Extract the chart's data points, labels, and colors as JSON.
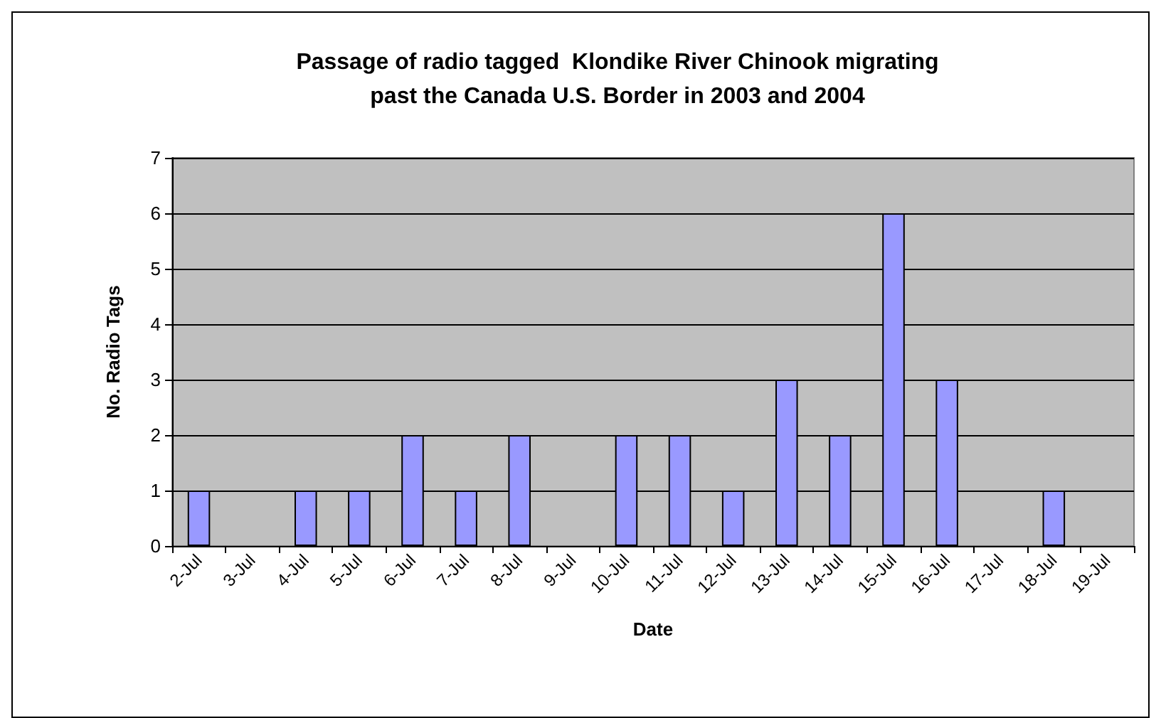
{
  "chart_data": {
    "type": "bar",
    "title": "Passage of radio tagged  Klondike River Chinook migrating\npast the Canada U.S. Border in 2003 and 2004",
    "xlabel": "Date",
    "ylabel": "No. Radio Tags",
    "categories": [
      "2-Jul",
      "3-Jul",
      "4-Jul",
      "5-Jul",
      "6-Jul",
      "7-Jul",
      "8-Jul",
      "9-Jul",
      "10-Jul",
      "11-Jul",
      "12-Jul",
      "13-Jul",
      "14-Jul",
      "15-Jul",
      "16-Jul",
      "17-Jul",
      "18-Jul",
      "19-Jul"
    ],
    "values": [
      1,
      0,
      1,
      1,
      2,
      1,
      2,
      0,
      2,
      2,
      1,
      3,
      2,
      6,
      3,
      0,
      1,
      0
    ],
    "color": "#9999ff",
    "ylim": [
      0,
      7
    ],
    "yticks": [
      0,
      1,
      2,
      3,
      4,
      5,
      6,
      7
    ],
    "grid": "y"
  }
}
